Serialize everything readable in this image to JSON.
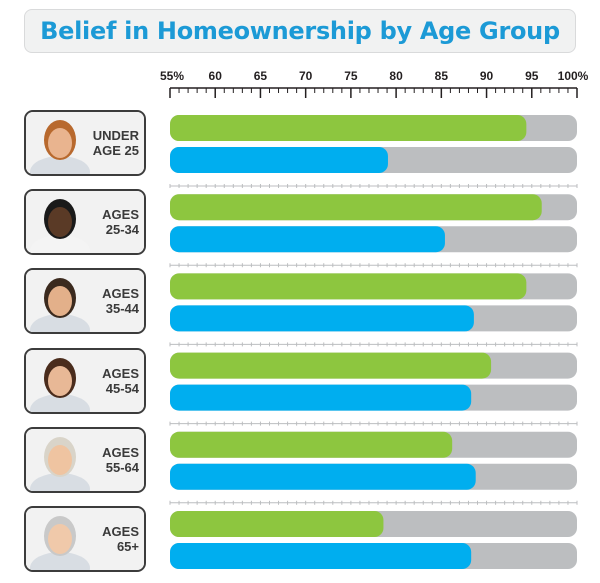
{
  "title": "Belief in Homeownership by Age Group",
  "chart_data": {
    "type": "bar",
    "orientation": "horizontal",
    "title": "Belief in Homeownership by Age Group",
    "xlim": [
      55,
      100
    ],
    "x_tick_values": [
      55,
      60,
      65,
      70,
      75,
      80,
      85,
      90,
      95,
      100
    ],
    "x_tick_labels": [
      "55%",
      "60",
      "65",
      "70",
      "75",
      "80",
      "85",
      "90",
      "95",
      "100%"
    ],
    "categories": [
      [
        "UNDER",
        "AGE 25"
      ],
      [
        "AGES",
        "25-34"
      ],
      [
        "AGES",
        "35-44"
      ],
      [
        "AGES",
        "45-54"
      ],
      [
        "AGES",
        "55-64"
      ],
      [
        "AGES",
        "65+"
      ]
    ],
    "series": [
      {
        "color": "#8dc63f",
        "values": [
          94.4,
          96.1,
          94.4,
          90.5,
          86.2,
          78.6
        ]
      },
      {
        "color": "#00aeef",
        "values": [
          79.1,
          85.4,
          88.6,
          88.3,
          88.8,
          88.3
        ]
      }
    ],
    "track_color": "#bcbec0"
  }
}
